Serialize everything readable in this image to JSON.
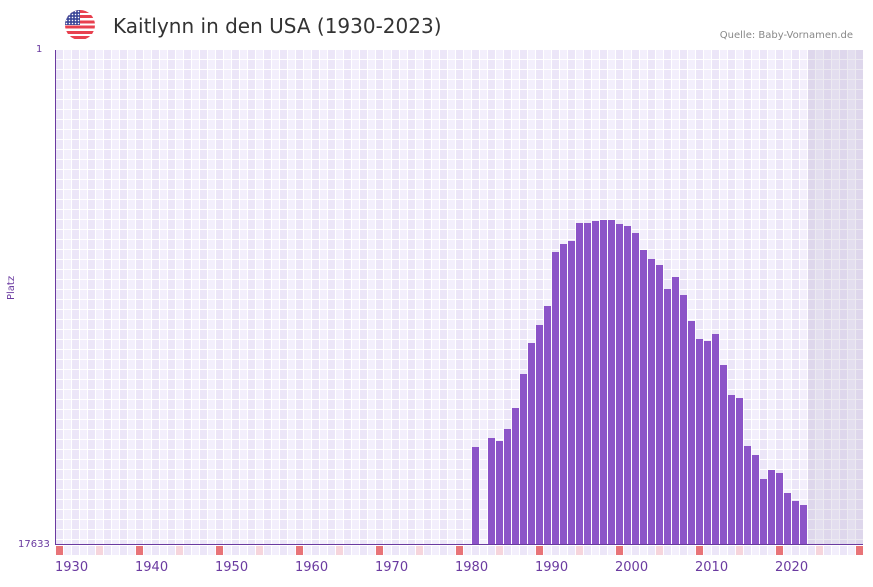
{
  "header": {
    "title": "Kaitlynn in den USA (1930-2023)",
    "source": "Quelle: Baby-Vornamen.de",
    "flag_icon": "usa-flag-icon"
  },
  "axis": {
    "y_top_label": "1",
    "y_bottom_label": "17633",
    "y_title": "Platz",
    "x_labels": [
      "1930",
      "1940",
      "1950",
      "1960",
      "1970",
      "1980",
      "1990",
      "2000",
      "2010",
      "2020"
    ]
  },
  "colors": {
    "bar": "#8c54c8",
    "axis": "#6a3aa0",
    "grid_a": "#f3effc",
    "grid_b": "#ece6f8",
    "tick_major": "#e87478",
    "tick_minor": "#f6d5dc"
  },
  "chart_data": {
    "type": "bar",
    "title": "Kaitlynn in den USA (1930-2023)",
    "xlabel": "",
    "ylabel": "Platz",
    "ylim": [
      17633,
      1
    ],
    "y_inverted": true,
    "x_range": [
      1930,
      2030
    ],
    "x": [
      1982,
      1984,
      1985,
      1986,
      1987,
      1988,
      1989,
      1990,
      1991,
      1992,
      1993,
      1994,
      1995,
      1996,
      1997,
      1998,
      1999,
      2000,
      2001,
      2002,
      2003,
      2004,
      2005,
      2006,
      2007,
      2008,
      2009,
      2010,
      2011,
      2012,
      2013,
      2014,
      2015,
      2016,
      2017,
      2018,
      2019,
      2020,
      2021,
      2022,
      2023
    ],
    "values": [
      14171,
      13849,
      13956,
      13528,
      12778,
      11565,
      10459,
      9816,
      9138,
      7211,
      6925,
      6818,
      6176,
      6176,
      6104,
      6068,
      6068,
      6211,
      6283,
      6532,
      7139,
      7460,
      7675,
      8531,
      8103,
      8745,
      9673,
      10316,
      10387,
      10137,
      11244,
      12314,
      12421,
      14134,
      14456,
      15313,
      14991,
      15098,
      15812,
      16097,
      16240
    ],
    "grid": true,
    "legend": null
  }
}
